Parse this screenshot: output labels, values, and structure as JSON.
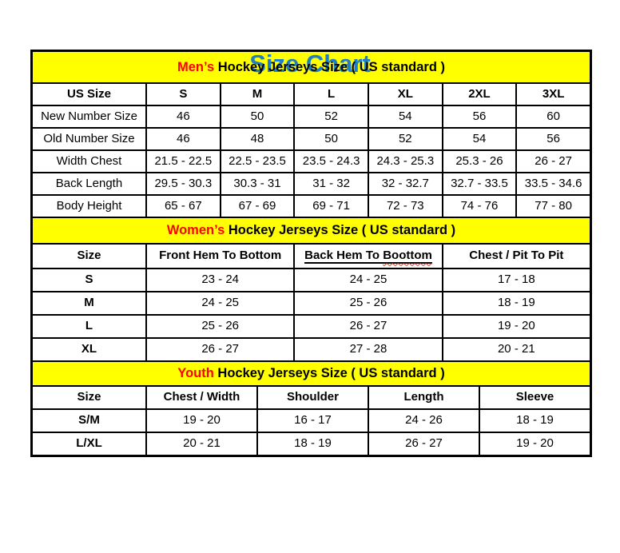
{
  "page": {
    "title": "Size Chart"
  },
  "colors": {
    "title_blue": "#1f7ec5",
    "section_band_yellow": "#ffff00",
    "section_accent_red": "#ff0000",
    "border_black": "#000000"
  },
  "tables": [
    {
      "id": "mens",
      "section_title": {
        "accent": "Men’s",
        "rest": " Hockey Jerseys Size ( US standard )"
      },
      "col_headers": [
        {
          "text": "US Size"
        },
        {
          "text": "S"
        },
        {
          "text": "M"
        },
        {
          "text": "L"
        },
        {
          "text": "XL"
        },
        {
          "text": "2XL"
        },
        {
          "text": "3XL"
        }
      ],
      "rows": [
        {
          "label": "New Number Size",
          "values": [
            "46",
            "50",
            "52",
            "54",
            "56",
            "60"
          ]
        },
        {
          "label": "Old Number Size",
          "values": [
            "46",
            "48",
            "50",
            "52",
            "54",
            "56"
          ]
        },
        {
          "label": "Width Chest",
          "values": [
            "21.5 - 22.5",
            "22.5 - 23.5",
            "23.5 - 24.3",
            "24.3 - 25.3",
            "25.3 - 26",
            "26 - 27"
          ]
        },
        {
          "label": "Back Length",
          "values": [
            "29.5 - 30.3",
            "30.3 - 31",
            "31 - 32",
            "32 - 32.7",
            "32.7 - 33.5",
            "33.5 - 34.6"
          ]
        },
        {
          "label": "Body Height",
          "values": [
            "65 - 67",
            "67 - 69",
            "69 - 71",
            "72 - 73",
            "74 - 76",
            "77 - 80"
          ]
        }
      ]
    },
    {
      "id": "womens",
      "section_title": {
        "accent": "Women’s",
        "rest": " Hockey Jerseys Size ( US standard )"
      },
      "col_headers": [
        {
          "text": "Size"
        },
        {
          "text": "Front Hem To Bottom"
        },
        {
          "text": "Back Hem To Boottom",
          "underline": true,
          "squiggle_word": "Boottom"
        },
        {
          "text": "Chest / Pit To Pit"
        }
      ],
      "rows": [
        {
          "label": "S",
          "values": [
            "23 - 24",
            "24 - 25",
            "17 - 18"
          ]
        },
        {
          "label": "M",
          "values": [
            "24 - 25",
            "25 - 26",
            "18 - 19"
          ]
        },
        {
          "label": "L",
          "values": [
            "25 - 26",
            "26 - 27",
            "19 - 20"
          ]
        },
        {
          "label": "XL",
          "values": [
            "26 - 27",
            "27 - 28",
            "20 - 21"
          ]
        }
      ]
    },
    {
      "id": "youth",
      "section_title": {
        "accent": "Youth",
        "rest": " Hockey Jerseys Size ( US standard )"
      },
      "col_headers": [
        {
          "text": "Size"
        },
        {
          "text": "Chest / Width"
        },
        {
          "text": "Shoulder"
        },
        {
          "text": "Length"
        },
        {
          "text": "Sleeve"
        }
      ],
      "rows": [
        {
          "label": "S/M",
          "values": [
            "19 - 20",
            "16 - 17",
            "24 - 26",
            "18 - 19"
          ]
        },
        {
          "label": "L/XL",
          "values": [
            "20 - 21",
            "18 - 19",
            "26 - 27",
            "19 - 20"
          ]
        }
      ]
    }
  ]
}
